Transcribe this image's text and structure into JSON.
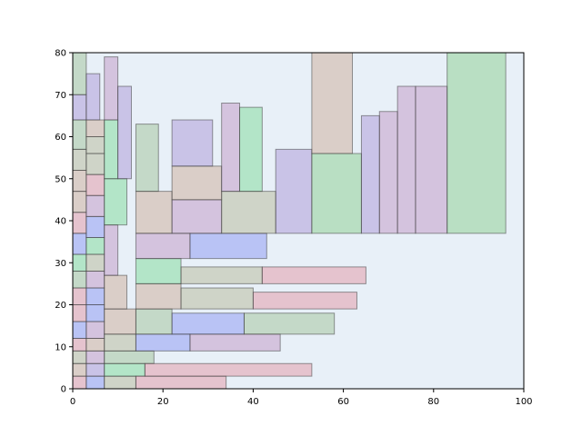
{
  "chart_data": {
    "type": "rectangles",
    "title": "",
    "xlabel": "",
    "ylabel": "",
    "xlim": [
      0,
      100
    ],
    "ylim": [
      0,
      80
    ],
    "x_ticks": [
      "0",
      "20",
      "40",
      "60",
      "80",
      "100"
    ],
    "y_ticks": [
      "0",
      "10",
      "20",
      "30",
      "40",
      "50",
      "60",
      "70",
      "80"
    ],
    "x_tick_values": [
      0,
      20,
      40,
      60,
      80,
      100
    ],
    "y_tick_values": [
      0,
      10,
      20,
      30,
      40,
      50,
      60,
      70,
      80
    ],
    "background_color": "#e8f0f8",
    "palette": {
      "pink": "#e07080",
      "green": "#50d070",
      "blue": "#6070f0",
      "purple": "#9070c8",
      "tan": "#c09070",
      "sage": "#80b070",
      "mauve": "#b070b0",
      "olive": "#a0a070",
      "lightgreen": "#60c060"
    },
    "rectangles": [
      {
        "x": 0,
        "y": 0,
        "w": 3,
        "h": 3,
        "color": "pink"
      },
      {
        "x": 0,
        "y": 3,
        "w": 3,
        "h": 3,
        "color": "tan"
      },
      {
        "x": 0,
        "y": 6,
        "w": 3,
        "h": 3,
        "color": "olive"
      },
      {
        "x": 0,
        "y": 9,
        "w": 3,
        "h": 3,
        "color": "pink"
      },
      {
        "x": 0,
        "y": 12,
        "w": 3,
        "h": 4,
        "color": "blue"
      },
      {
        "x": 0,
        "y": 16,
        "w": 3,
        "h": 4,
        "color": "pink"
      },
      {
        "x": 0,
        "y": 20,
        "w": 3,
        "h": 4,
        "color": "pink"
      },
      {
        "x": 0,
        "y": 24,
        "w": 3,
        "h": 4,
        "color": "sage"
      },
      {
        "x": 0,
        "y": 28,
        "w": 3,
        "h": 4,
        "color": "green"
      },
      {
        "x": 0,
        "y": 32,
        "w": 3,
        "h": 5,
        "color": "blue"
      },
      {
        "x": 0,
        "y": 37,
        "w": 3,
        "h": 5,
        "color": "pink"
      },
      {
        "x": 0,
        "y": 42,
        "w": 3,
        "h": 5,
        "color": "tan"
      },
      {
        "x": 0,
        "y": 47,
        "w": 3,
        "h": 5,
        "color": "tan"
      },
      {
        "x": 0,
        "y": 52,
        "w": 3,
        "h": 5,
        "color": "olive"
      },
      {
        "x": 0,
        "y": 57,
        "w": 3,
        "h": 7,
        "color": "sage"
      },
      {
        "x": 0,
        "y": 64,
        "w": 3,
        "h": 6,
        "color": "purple"
      },
      {
        "x": 0,
        "y": 70,
        "w": 3,
        "h": 10,
        "color": "sage"
      },
      {
        "x": 3,
        "y": 0,
        "w": 4,
        "h": 3,
        "color": "blue"
      },
      {
        "x": 3,
        "y": 3,
        "w": 4,
        "h": 3,
        "color": "purple"
      },
      {
        "x": 3,
        "y": 6,
        "w": 4,
        "h": 3,
        "color": "mauve"
      },
      {
        "x": 3,
        "y": 9,
        "w": 4,
        "h": 3,
        "color": "tan"
      },
      {
        "x": 3,
        "y": 12,
        "w": 4,
        "h": 4,
        "color": "mauve"
      },
      {
        "x": 3,
        "y": 16,
        "w": 4,
        "h": 4,
        "color": "blue"
      },
      {
        "x": 3,
        "y": 20,
        "w": 4,
        "h": 4,
        "color": "blue"
      },
      {
        "x": 3,
        "y": 24,
        "w": 4,
        "h": 4,
        "color": "mauve"
      },
      {
        "x": 3,
        "y": 28,
        "w": 4,
        "h": 4,
        "color": "olive"
      },
      {
        "x": 3,
        "y": 32,
        "w": 4,
        "h": 4,
        "color": "green"
      },
      {
        "x": 3,
        "y": 36,
        "w": 4,
        "h": 5,
        "color": "blue"
      },
      {
        "x": 3,
        "y": 41,
        "w": 4,
        "h": 5,
        "color": "mauve"
      },
      {
        "x": 3,
        "y": 46,
        "w": 4,
        "h": 5,
        "color": "pink"
      },
      {
        "x": 3,
        "y": 51,
        "w": 4,
        "h": 5,
        "color": "olive"
      },
      {
        "x": 3,
        "y": 56,
        "w": 4,
        "h": 4,
        "color": "olive"
      },
      {
        "x": 3,
        "y": 60,
        "w": 4,
        "h": 4,
        "color": "tan"
      },
      {
        "x": 3,
        "y": 64,
        "w": 3,
        "h": 11,
        "color": "purple"
      },
      {
        "x": 7,
        "y": 0,
        "w": 7,
        "h": 3,
        "color": "olive"
      },
      {
        "x": 7,
        "y": 3,
        "w": 9,
        "h": 3,
        "color": "green"
      },
      {
        "x": 7,
        "y": 6,
        "w": 11,
        "h": 3,
        "color": "sage"
      },
      {
        "x": 7,
        "y": 9,
        "w": 7,
        "h": 4,
        "color": "olive"
      },
      {
        "x": 7,
        "y": 13,
        "w": 7,
        "h": 6,
        "color": "tan"
      },
      {
        "x": 7,
        "y": 19,
        "w": 5,
        "h": 8,
        "color": "tan"
      },
      {
        "x": 7,
        "y": 27,
        "w": 3,
        "h": 12,
        "color": "mauve"
      },
      {
        "x": 7,
        "y": 39,
        "w": 5,
        "h": 11,
        "color": "green"
      },
      {
        "x": 7,
        "y": 50,
        "w": 3,
        "h": 14,
        "color": "green"
      },
      {
        "x": 7,
        "y": 64,
        "w": 3,
        "h": 15,
        "color": "mauve"
      },
      {
        "x": 10,
        "y": 50,
        "w": 3,
        "h": 22,
        "color": "purple"
      },
      {
        "x": 14,
        "y": 0,
        "w": 20,
        "h": 3,
        "color": "pink"
      },
      {
        "x": 16,
        "y": 3,
        "w": 37,
        "h": 3,
        "color": "pink"
      },
      {
        "x": 14,
        "y": 9,
        "w": 12,
        "h": 4,
        "color": "blue"
      },
      {
        "x": 26,
        "y": 9,
        "w": 20,
        "h": 4,
        "color": "mauve"
      },
      {
        "x": 14,
        "y": 13,
        "w": 8,
        "h": 6,
        "color": "sage"
      },
      {
        "x": 22,
        "y": 13,
        "w": 16,
        "h": 5,
        "color": "blue"
      },
      {
        "x": 38,
        "y": 13,
        "w": 20,
        "h": 5,
        "color": "sage"
      },
      {
        "x": 14,
        "y": 19,
        "w": 10,
        "h": 6,
        "color": "tan"
      },
      {
        "x": 24,
        "y": 19,
        "w": 16,
        "h": 5,
        "color": "olive"
      },
      {
        "x": 40,
        "y": 19,
        "w": 23,
        "h": 4,
        "color": "pink"
      },
      {
        "x": 14,
        "y": 25,
        "w": 10,
        "h": 6,
        "color": "green"
      },
      {
        "x": 24,
        "y": 25,
        "w": 18,
        "h": 4,
        "color": "olive"
      },
      {
        "x": 42,
        "y": 25,
        "w": 23,
        "h": 4,
        "color": "pink"
      },
      {
        "x": 14,
        "y": 31,
        "w": 12,
        "h": 6,
        "color": "mauve"
      },
      {
        "x": 26,
        "y": 31,
        "w": 17,
        "h": 6,
        "color": "blue"
      },
      {
        "x": 14,
        "y": 37,
        "w": 8,
        "h": 10,
        "color": "tan"
      },
      {
        "x": 22,
        "y": 37,
        "w": 11,
        "h": 8,
        "color": "mauve"
      },
      {
        "x": 33,
        "y": 37,
        "w": 12,
        "h": 10,
        "color": "olive"
      },
      {
        "x": 22,
        "y": 45,
        "w": 11,
        "h": 8,
        "color": "tan"
      },
      {
        "x": 14,
        "y": 47,
        "w": 5,
        "h": 16,
        "color": "sage"
      },
      {
        "x": 22,
        "y": 53,
        "w": 9,
        "h": 11,
        "color": "purple"
      },
      {
        "x": 33,
        "y": 47,
        "w": 4,
        "h": 21,
        "color": "mauve"
      },
      {
        "x": 37,
        "y": 47,
        "w": 5,
        "h": 20,
        "color": "green"
      },
      {
        "x": 45,
        "y": 37,
        "w": 8,
        "h": 20,
        "color": "purple"
      },
      {
        "x": 53,
        "y": 37,
        "w": 11,
        "h": 19,
        "color": "lightgreen"
      },
      {
        "x": 53,
        "y": 56,
        "w": 9,
        "h": 24,
        "color": "tan"
      },
      {
        "x": 64,
        "y": 37,
        "w": 4,
        "h": 28,
        "color": "purple"
      },
      {
        "x": 68,
        "y": 37,
        "w": 4,
        "h": 29,
        "color": "mauve"
      },
      {
        "x": 72,
        "y": 37,
        "w": 4,
        "h": 35,
        "color": "mauve"
      },
      {
        "x": 76,
        "y": 37,
        "w": 7,
        "h": 35,
        "color": "mauve"
      },
      {
        "x": 83,
        "y": 37,
        "w": 13,
        "h": 43,
        "color": "lightgreen"
      }
    ]
  }
}
